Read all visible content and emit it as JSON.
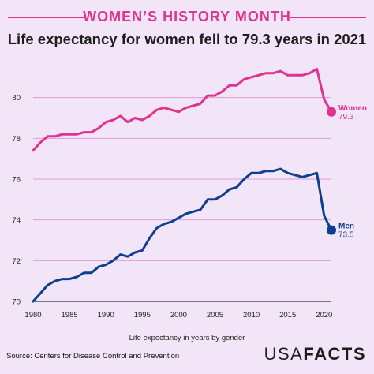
{
  "header": {
    "banner": "WOMEN’S HISTORY MONTH",
    "title": "Life expectancy for women fell to 79.3 years in 2021"
  },
  "footer": {
    "source": "Source: Centers for Disease Control and Prevention",
    "logo_part1": "USA",
    "logo_part2": "FACTS"
  },
  "colors": {
    "women": "#e0338f",
    "men": "#0e3f8c",
    "grid": "#e59bd0",
    "background": "#f3e5f8"
  },
  "chart_data": {
    "type": "line",
    "title": "Life expectancy for women fell to 79.3 years in 2021",
    "xlabel": "Life expectancy in years by gender",
    "ylabel": "",
    "xlim": [
      1980,
      2021
    ],
    "ylim": [
      70,
      82
    ],
    "xticks": [
      1980,
      1985,
      1990,
      1995,
      2000,
      2005,
      2010,
      2015,
      2020
    ],
    "yticks": [
      70,
      72,
      74,
      76,
      78,
      80
    ],
    "grid": "horizontal",
    "x": [
      1980,
      1981,
      1982,
      1983,
      1984,
      1985,
      1986,
      1987,
      1988,
      1989,
      1990,
      1991,
      1992,
      1993,
      1994,
      1995,
      1996,
      1997,
      1998,
      1999,
      2000,
      2001,
      2002,
      2003,
      2004,
      2005,
      2006,
      2007,
      2008,
      2009,
      2010,
      2011,
      2012,
      2013,
      2014,
      2015,
      2016,
      2017,
      2018,
      2019,
      2020,
      2021
    ],
    "series": [
      {
        "name": "Women",
        "end_label": "79.3",
        "values": [
          77.4,
          77.8,
          78.1,
          78.1,
          78.2,
          78.2,
          78.2,
          78.3,
          78.3,
          78.5,
          78.8,
          78.9,
          79.1,
          78.8,
          79.0,
          78.9,
          79.1,
          79.4,
          79.5,
          79.4,
          79.3,
          79.5,
          79.6,
          79.7,
          80.1,
          80.1,
          80.3,
          80.6,
          80.6,
          80.9,
          81.0,
          81.1,
          81.2,
          81.2,
          81.3,
          81.1,
          81.1,
          81.1,
          81.2,
          81.4,
          79.9,
          79.3
        ]
      },
      {
        "name": "Men",
        "end_label": "73.5",
        "values": [
          70.0,
          70.4,
          70.8,
          71.0,
          71.1,
          71.1,
          71.2,
          71.4,
          71.4,
          71.7,
          71.8,
          72.0,
          72.3,
          72.2,
          72.4,
          72.5,
          73.1,
          73.6,
          73.8,
          73.9,
          74.1,
          74.3,
          74.4,
          74.5,
          75.0,
          75.0,
          75.2,
          75.5,
          75.6,
          76.0,
          76.3,
          76.3,
          76.4,
          76.4,
          76.5,
          76.3,
          76.2,
          76.1,
          76.2,
          76.3,
          74.2,
          73.5
        ]
      }
    ]
  }
}
